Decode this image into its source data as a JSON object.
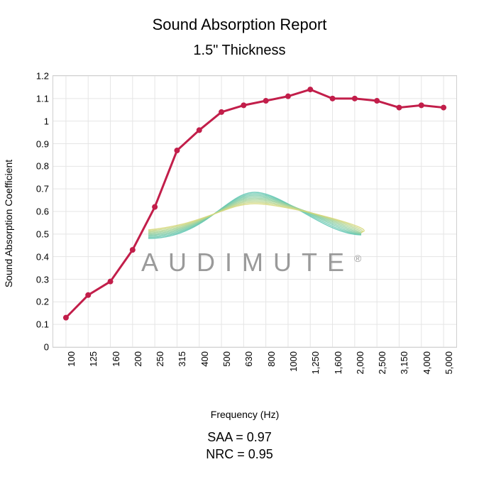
{
  "title_main": "Sound Absorption Report",
  "title_sub": "1.5\" Thickness",
  "ylabel": "Sound Absorption Coefficient",
  "xlabel": "Frequency (Hz)",
  "saa_line": "SAA = 0.97",
  "nrc_line": "NRC = 0.95",
  "watermark": "AUDIMUTE",
  "chart": {
    "type": "line",
    "line_color": "#c21e4a",
    "line_width": 3,
    "marker_color": "#c21e4a",
    "marker_radius": 4,
    "grid_color": "#e5e5e5",
    "border_color": "#d0d0d0",
    "background_color": "#ffffff",
    "title_fontsize": 22,
    "subtitle_fontsize": 20,
    "label_fontsize": 14,
    "tick_fontsize": 13,
    "watermark_color": "#9a9a9a",
    "watermark_fontsize": 36,
    "watermark_letterspacing": 14,
    "wave_colors": [
      "#5bc4b0",
      "#67c7ad",
      "#74caa9",
      "#82cca4",
      "#91ce9e",
      "#a1d197",
      "#b2d38e",
      "#c4d584",
      "#d6d778"
    ],
    "ylim": [
      0,
      1.2
    ],
    "ytick_step": 0.1,
    "yticks": [
      "0",
      "0.1",
      "0.2",
      "0.3",
      "0.4",
      "0.5",
      "0.6",
      "0.7",
      "0.8",
      "0.9",
      "1",
      "1.1",
      "1.2"
    ],
    "x_categories": [
      "100",
      "125",
      "160",
      "200",
      "250",
      "315",
      "400",
      "500",
      "630",
      "800",
      "1000",
      "1,250",
      "1,600",
      "2,000",
      "2,500",
      "3,150",
      "4,000",
      "5,000"
    ],
    "values": [
      0.13,
      0.23,
      0.29,
      0.43,
      0.62,
      0.87,
      0.96,
      1.04,
      1.07,
      1.09,
      1.11,
      1.14,
      1.1,
      1.1,
      1.09,
      1.06,
      1.07,
      1.06
    ]
  }
}
